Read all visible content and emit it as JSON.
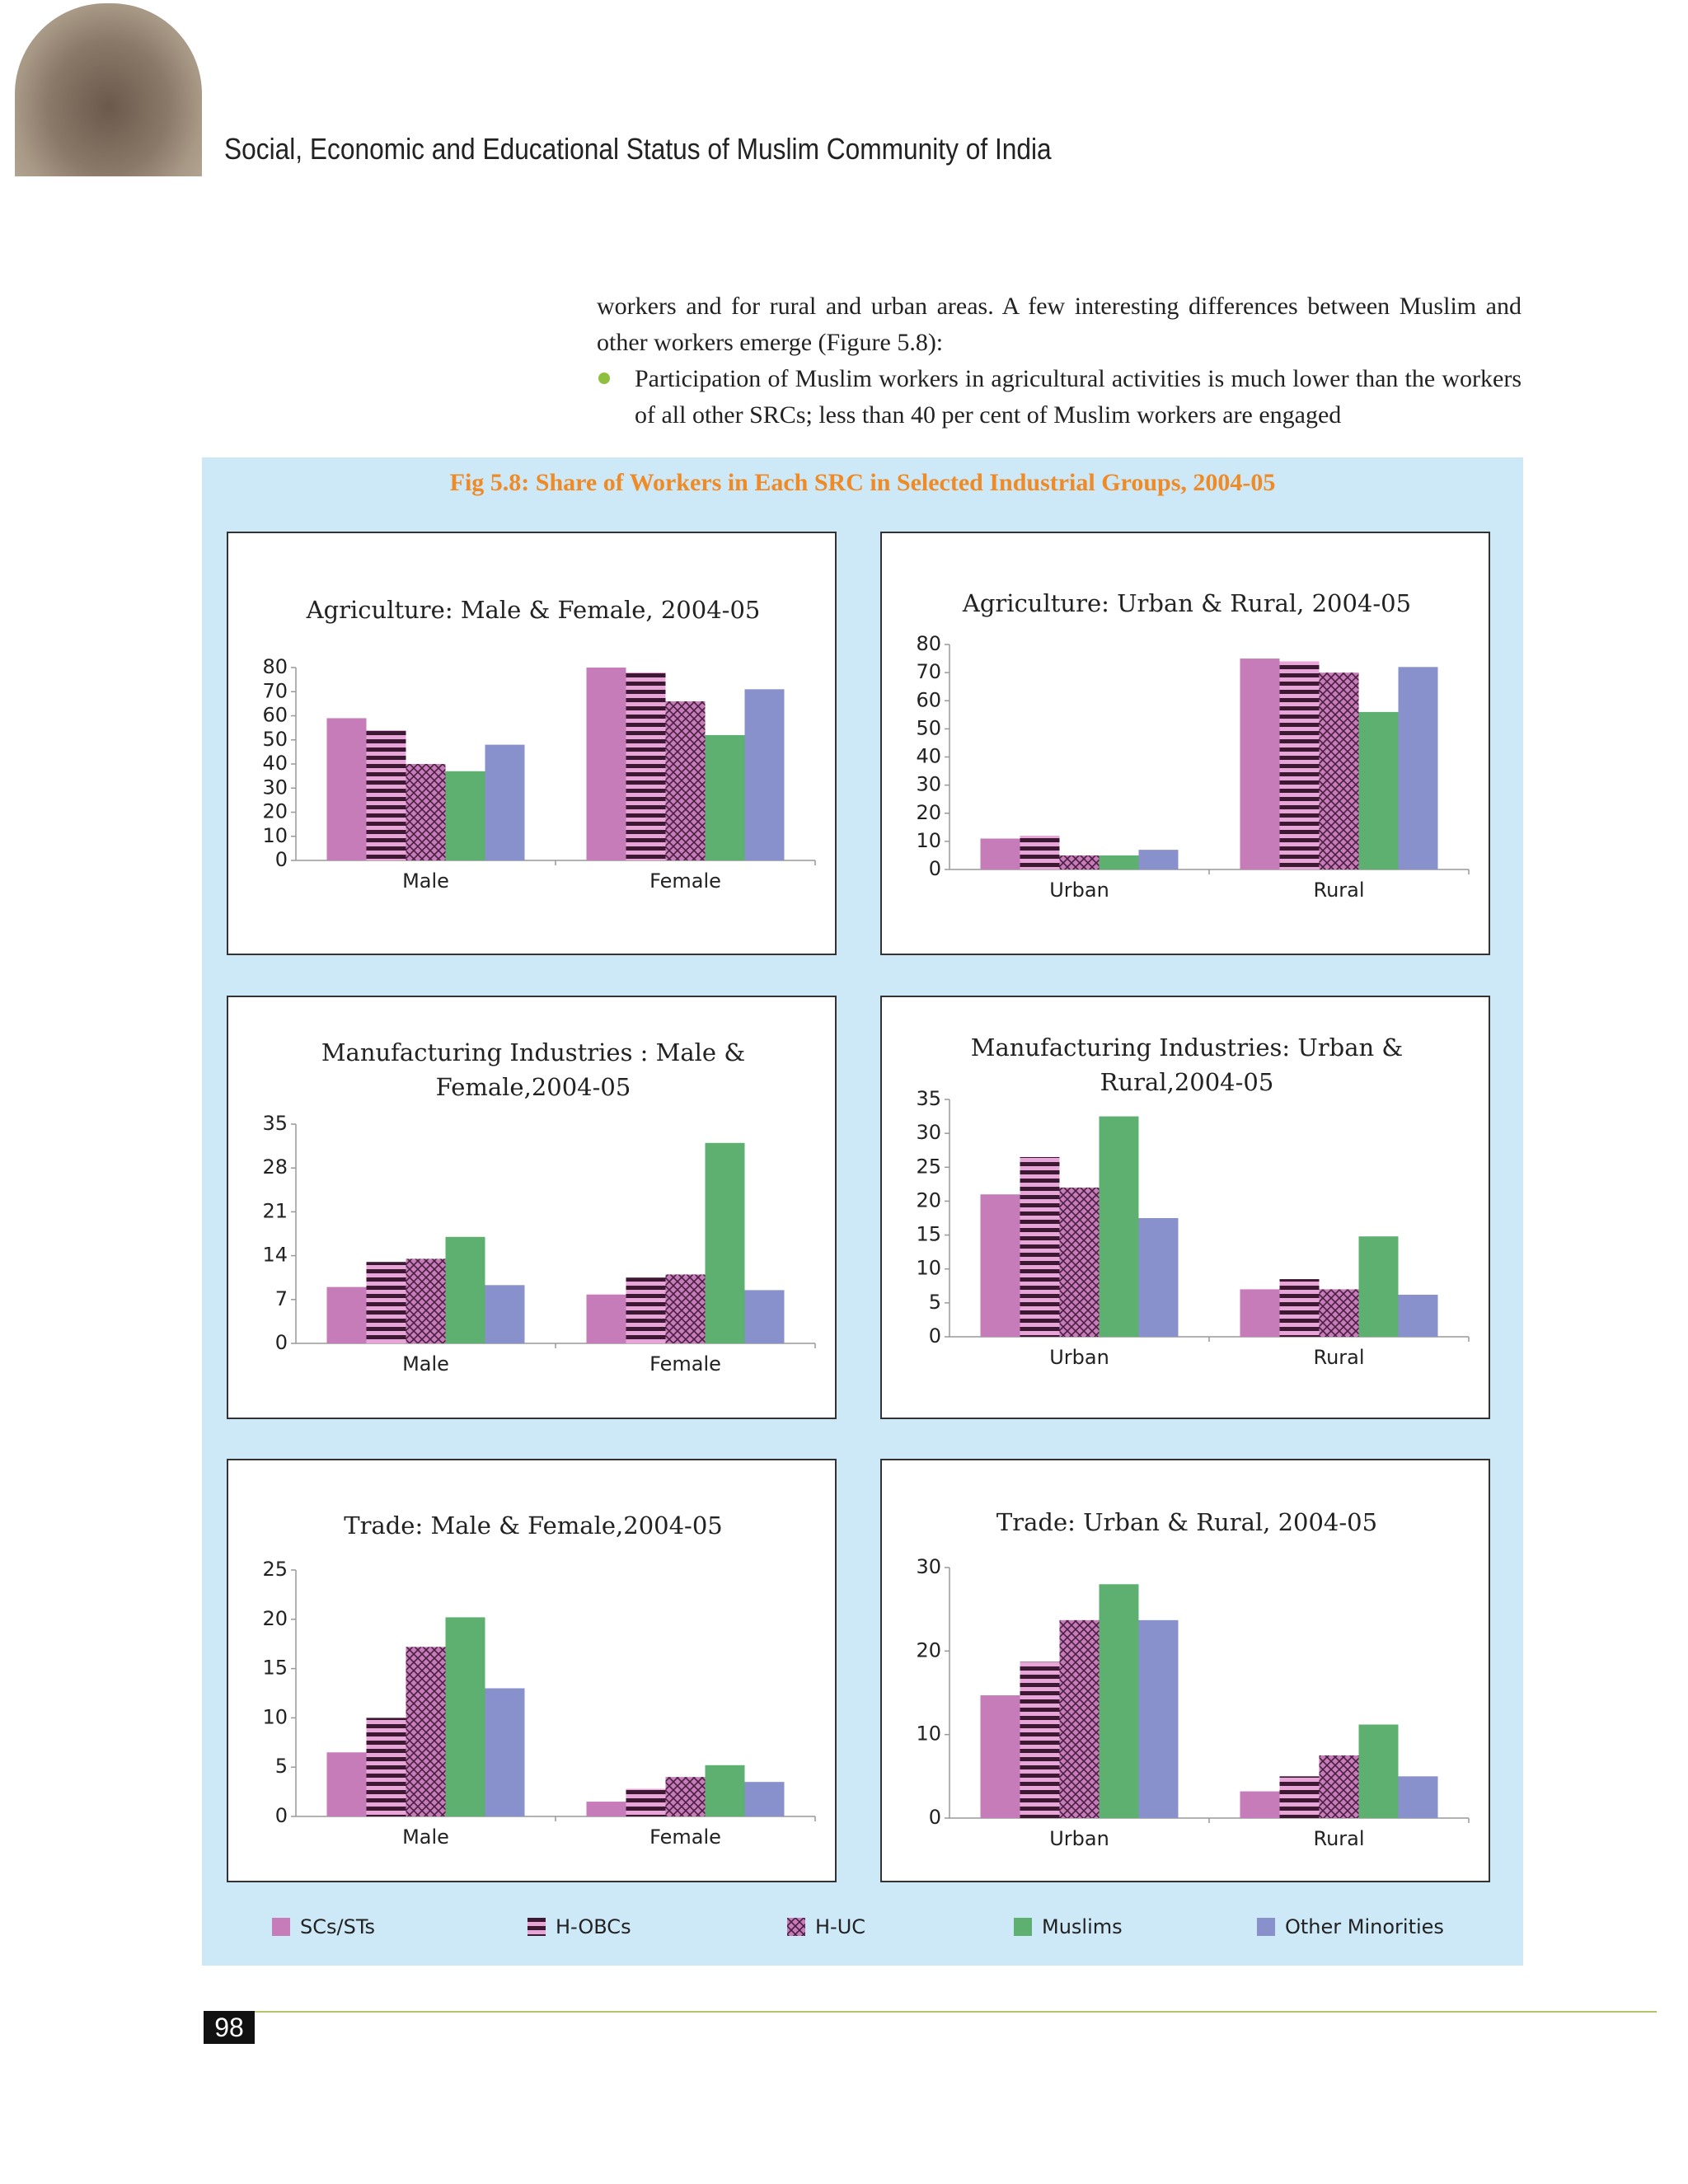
{
  "header": {
    "title": "Social, Economic and Educational Status of Muslim Community of India"
  },
  "body": {
    "paragraph": "workers and for rural and urban areas. A few interesting differences between Muslim and other workers emerge (Figure 5.8):",
    "bullets": [
      "Participation of Muslim workers in agricultural activities is much lower than the workers of all other SRCs; less than 40 per cent of Muslim workers are engaged"
    ]
  },
  "figure": {
    "title": "Fig 5.8: Share of Workers in Each SRC in Selected Industrial Groups, 2004-05"
  },
  "legend": [
    {
      "name": "SCs/STs",
      "color": "#c77cba"
    },
    {
      "name": "H-OBCs",
      "color": "#3d1833",
      "pattern": "stripes"
    },
    {
      "name": "H-UC",
      "color": "#c77cba",
      "pattern": "crosshatch"
    },
    {
      "name": "Muslims",
      "color": "#5db070"
    },
    {
      "name": "Other Minorities",
      "color": "#8891cc"
    }
  ],
  "chart_data": [
    {
      "type": "bar",
      "title": "Agriculture: Male & Female, 2004-05",
      "categories": [
        "Male",
        "Female"
      ],
      "ylim": [
        0,
        80
      ],
      "yticks": [
        0,
        10,
        20,
        30,
        40,
        50,
        60,
        70,
        80
      ],
      "series": [
        {
          "values": [
            59,
            80
          ]
        },
        {
          "values": [
            54,
            78
          ]
        },
        {
          "values": [
            40,
            66
          ]
        },
        {
          "values": [
            37,
            52
          ]
        },
        {
          "values": [
            48,
            71
          ]
        }
      ]
    },
    {
      "type": "bar",
      "title": "Agriculture: Urban & Rural, 2004-05",
      "categories": [
        "Urban",
        "Rural"
      ],
      "ylim": [
        0,
        80
      ],
      "yticks": [
        0,
        10,
        20,
        30,
        40,
        50,
        60,
        70,
        80
      ],
      "series": [
        {
          "values": [
            11,
            75
          ]
        },
        {
          "values": [
            12,
            74
          ]
        },
        {
          "values": [
            5,
            70
          ]
        },
        {
          "values": [
            5,
            56
          ]
        },
        {
          "values": [
            7,
            72
          ]
        }
      ]
    },
    {
      "type": "bar",
      "title": "Manufacturing Industries : Male & Female,2004-05",
      "categories": [
        "Male",
        "Female"
      ],
      "ylim": [
        0,
        35
      ],
      "yticks": [
        0,
        7,
        14,
        21,
        28,
        35
      ],
      "series": [
        {
          "values": [
            9,
            7.8
          ]
        },
        {
          "values": [
            13,
            10.5
          ]
        },
        {
          "values": [
            13.5,
            11
          ]
        },
        {
          "values": [
            17,
            32
          ]
        },
        {
          "values": [
            9.3,
            8.5
          ]
        }
      ]
    },
    {
      "type": "bar",
      "title": "Manufacturing Industries: Urban & Rural,2004-05",
      "categories": [
        "Urban",
        "Rural"
      ],
      "ylim": [
        0,
        35
      ],
      "yticks": [
        0,
        5,
        10,
        15,
        20,
        25,
        30,
        35
      ],
      "series": [
        {
          "values": [
            21,
            7
          ]
        },
        {
          "values": [
            26.5,
            8.5
          ]
        },
        {
          "values": [
            22,
            7
          ]
        },
        {
          "values": [
            32.5,
            14.8
          ]
        },
        {
          "values": [
            17.5,
            6.2
          ]
        }
      ]
    },
    {
      "type": "bar",
      "title": "Trade: Male & Female,2004-05",
      "categories": [
        "Male",
        "Female"
      ],
      "ylim": [
        0,
        25
      ],
      "yticks": [
        0,
        5,
        10,
        15,
        20,
        25
      ],
      "series": [
        {
          "values": [
            6.5,
            1.5
          ]
        },
        {
          "values": [
            10,
            2.8
          ]
        },
        {
          "values": [
            17.2,
            4
          ]
        },
        {
          "values": [
            20.2,
            5.2
          ]
        },
        {
          "values": [
            13,
            3.5
          ]
        }
      ]
    },
    {
      "type": "bar",
      "title": "Trade: Urban & Rural,  2004-05",
      "categories": [
        "Urban",
        "Rural"
      ],
      "ylim": [
        0,
        30
      ],
      "yticks": [
        0,
        10,
        20,
        30
      ],
      "series": [
        {
          "values": [
            14.7,
            3.2
          ]
        },
        {
          "values": [
            18.7,
            5
          ]
        },
        {
          "values": [
            23.7,
            7.5
          ]
        },
        {
          "values": [
            28,
            11.2
          ]
        },
        {
          "values": [
            23.7,
            5
          ]
        }
      ]
    }
  ],
  "footer": {
    "page_number": "98"
  }
}
